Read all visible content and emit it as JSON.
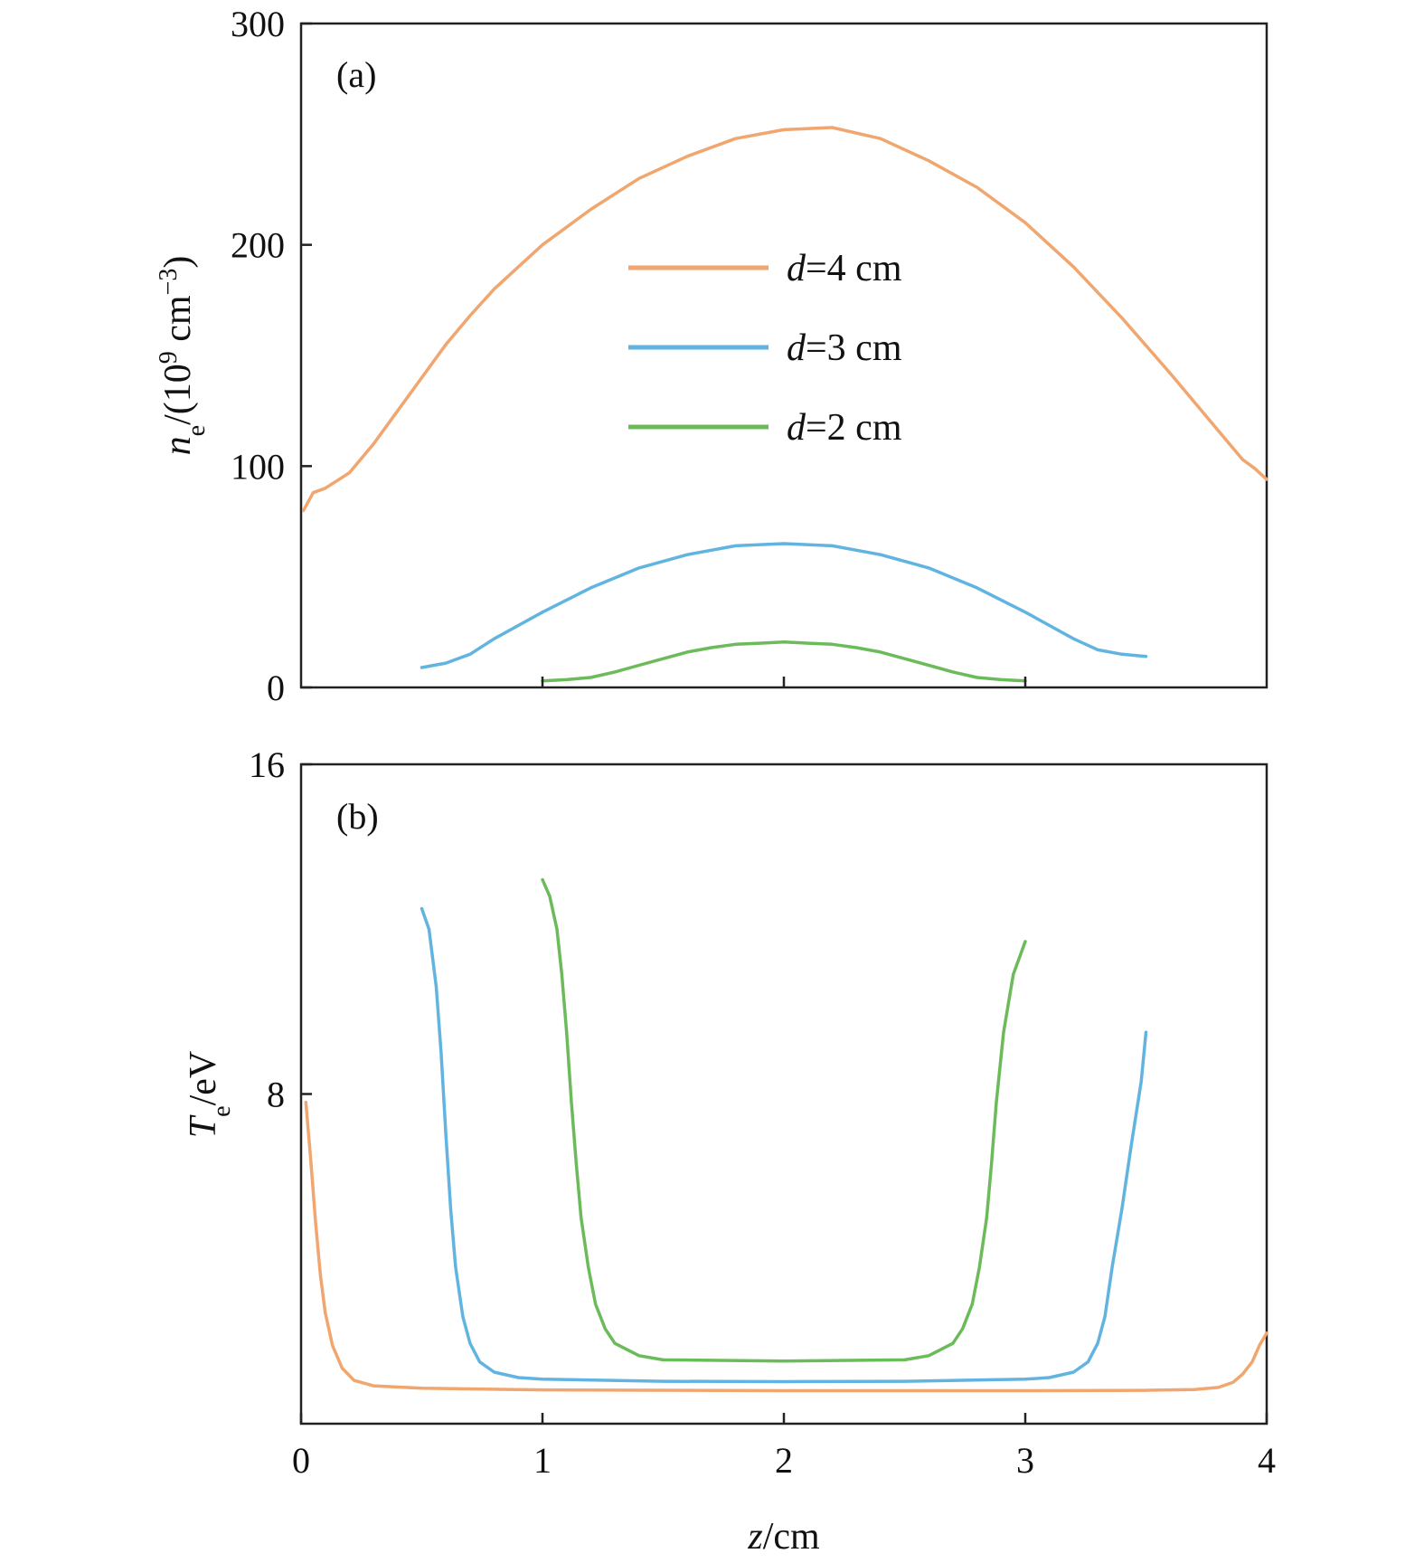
{
  "chart_data": [
    {
      "type": "line",
      "panel_label": "(a)",
      "ylabel": {
        "symbol": "n",
        "sub": "e",
        "pre": "/(10",
        "sup1": "9",
        "mid": " cm",
        "sup2": "−3",
        "post": ")"
      },
      "xlim": [
        0,
        4
      ],
      "ylim": [
        0,
        300
      ],
      "yticks": [
        0,
        100,
        200,
        300
      ],
      "xticks": [
        1,
        2,
        3
      ],
      "legend_position": "center",
      "legend": [
        {
          "italic": "d",
          "text": "=4 cm",
          "color": "#f0a66e"
        },
        {
          "italic": "d",
          "text": "=3 cm",
          "color": "#62b4e0"
        },
        {
          "italic": "d",
          "text": "=2 cm",
          "color": "#6cbb5b"
        }
      ],
      "series": [
        {
          "color": "#f0a66e",
          "points": [
            [
              0.01,
              80
            ],
            [
              0.05,
              88
            ],
            [
              0.1,
              90
            ],
            [
              0.2,
              97
            ],
            [
              0.3,
              110
            ],
            [
              0.4,
              125
            ],
            [
              0.5,
              140
            ],
            [
              0.6,
              155
            ],
            [
              0.7,
              168
            ],
            [
              0.8,
              180
            ],
            [
              0.9,
              190
            ],
            [
              1.0,
              200
            ],
            [
              1.2,
              216
            ],
            [
              1.4,
              230
            ],
            [
              1.6,
              240
            ],
            [
              1.8,
              248
            ],
            [
              2.0,
              252
            ],
            [
              2.2,
              253
            ],
            [
              2.4,
              248
            ],
            [
              2.6,
              238
            ],
            [
              2.8,
              226
            ],
            [
              3.0,
              210
            ],
            [
              3.2,
              190
            ],
            [
              3.4,
              167
            ],
            [
              3.6,
              142
            ],
            [
              3.8,
              116
            ],
            [
              3.9,
              103
            ],
            [
              3.95,
              99
            ],
            [
              4.0,
              94
            ]
          ]
        },
        {
          "color": "#62b4e0",
          "points": [
            [
              0.5,
              9
            ],
            [
              0.6,
              11
            ],
            [
              0.7,
              15
            ],
            [
              0.8,
              22
            ],
            [
              0.9,
              28
            ],
            [
              1.0,
              34
            ],
            [
              1.2,
              45
            ],
            [
              1.4,
              54
            ],
            [
              1.6,
              60
            ],
            [
              1.8,
              64
            ],
            [
              2.0,
              65
            ],
            [
              2.2,
              64
            ],
            [
              2.4,
              60
            ],
            [
              2.6,
              54
            ],
            [
              2.8,
              45
            ],
            [
              3.0,
              34
            ],
            [
              3.1,
              28
            ],
            [
              3.2,
              22
            ],
            [
              3.3,
              17
            ],
            [
              3.4,
              15
            ],
            [
              3.5,
              14
            ]
          ]
        },
        {
          "color": "#6cbb5b",
          "points": [
            [
              1.0,
              3
            ],
            [
              1.1,
              3.5
            ],
            [
              1.2,
              4.5
            ],
            [
              1.3,
              7
            ],
            [
              1.4,
              10
            ],
            [
              1.5,
              13
            ],
            [
              1.6,
              16
            ],
            [
              1.7,
              18
            ],
            [
              1.8,
              19.5
            ],
            [
              1.9,
              20
            ],
            [
              2.0,
              20.5
            ],
            [
              2.1,
              20
            ],
            [
              2.2,
              19.5
            ],
            [
              2.3,
              18
            ],
            [
              2.4,
              16
            ],
            [
              2.5,
              13
            ],
            [
              2.6,
              10
            ],
            [
              2.7,
              7
            ],
            [
              2.8,
              4.5
            ],
            [
              2.9,
              3.5
            ],
            [
              3.0,
              3
            ]
          ]
        }
      ]
    },
    {
      "type": "line",
      "panel_label": "(b)",
      "ylabel": {
        "symbol": "T",
        "sub": "e",
        "post": "/eV"
      },
      "xlabel": {
        "italic": "z",
        "text": "/cm"
      },
      "xlim": [
        0,
        4
      ],
      "ylim": [
        0,
        16
      ],
      "yticks": [
        8,
        16
      ],
      "xticks": [
        0,
        1,
        2,
        3,
        4
      ],
      "series": [
        {
          "color": "#f0a66e",
          "points": [
            [
              0.02,
              7.8
            ],
            [
              0.04,
              6.4
            ],
            [
              0.06,
              4.9
            ],
            [
              0.08,
              3.6
            ],
            [
              0.1,
              2.7
            ],
            [
              0.13,
              1.9
            ],
            [
              0.17,
              1.35
            ],
            [
              0.22,
              1.05
            ],
            [
              0.3,
              0.92
            ],
            [
              0.5,
              0.86
            ],
            [
              1.0,
              0.82
            ],
            [
              2.0,
              0.8
            ],
            [
              3.0,
              0.8
            ],
            [
              3.5,
              0.81
            ],
            [
              3.7,
              0.83
            ],
            [
              3.8,
              0.88
            ],
            [
              3.86,
              1.0
            ],
            [
              3.9,
              1.2
            ],
            [
              3.94,
              1.5
            ],
            [
              3.97,
              1.9
            ],
            [
              4.0,
              2.2
            ]
          ]
        },
        {
          "color": "#62b4e0",
          "points": [
            [
              0.5,
              12.5
            ],
            [
              0.53,
              12.0
            ],
            [
              0.56,
              10.6
            ],
            [
              0.58,
              9.0
            ],
            [
              0.6,
              7.0
            ],
            [
              0.62,
              5.2
            ],
            [
              0.64,
              3.8
            ],
            [
              0.67,
              2.6
            ],
            [
              0.7,
              1.95
            ],
            [
              0.74,
              1.5
            ],
            [
              0.8,
              1.25
            ],
            [
              0.9,
              1.12
            ],
            [
              1.0,
              1.08
            ],
            [
              1.5,
              1.03
            ],
            [
              2.0,
              1.02
            ],
            [
              2.5,
              1.03
            ],
            [
              3.0,
              1.08
            ],
            [
              3.1,
              1.12
            ],
            [
              3.2,
              1.25
            ],
            [
              3.26,
              1.5
            ],
            [
              3.3,
              1.95
            ],
            [
              3.33,
              2.6
            ],
            [
              3.36,
              3.8
            ],
            [
              3.4,
              5.2
            ],
            [
              3.44,
              6.8
            ],
            [
              3.48,
              8.3
            ],
            [
              3.5,
              9.5
            ]
          ]
        },
        {
          "color": "#6cbb5b",
          "points": [
            [
              1.0,
              13.2
            ],
            [
              1.03,
              12.8
            ],
            [
              1.06,
              12.0
            ],
            [
              1.08,
              10.9
            ],
            [
              1.1,
              9.5
            ],
            [
              1.12,
              7.8
            ],
            [
              1.14,
              6.3
            ],
            [
              1.16,
              5.0
            ],
            [
              1.19,
              3.8
            ],
            [
              1.22,
              2.9
            ],
            [
              1.26,
              2.3
            ],
            [
              1.3,
              1.95
            ],
            [
              1.4,
              1.65
            ],
            [
              1.5,
              1.55
            ],
            [
              2.0,
              1.52
            ],
            [
              2.5,
              1.55
            ],
            [
              2.6,
              1.65
            ],
            [
              2.7,
              1.95
            ],
            [
              2.74,
              2.3
            ],
            [
              2.78,
              2.9
            ],
            [
              2.81,
              3.8
            ],
            [
              2.84,
              5.0
            ],
            [
              2.86,
              6.3
            ],
            [
              2.88,
              7.8
            ],
            [
              2.91,
              9.5
            ],
            [
              2.95,
              10.9
            ],
            [
              3.0,
              11.7
            ]
          ]
        }
      ]
    }
  ]
}
